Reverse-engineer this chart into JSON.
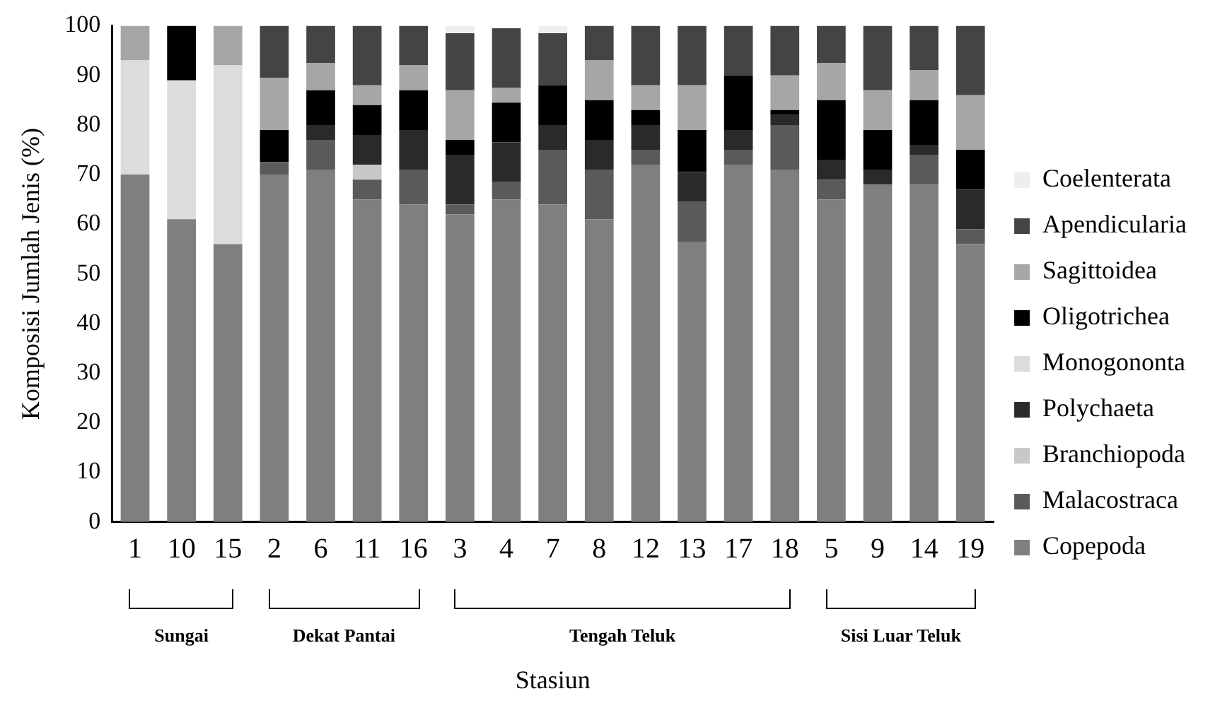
{
  "chart_data": {
    "type": "bar",
    "stacked": true,
    "ylabel": "Komposisi Jumlah Jenis (%)",
    "xlabel": "Stasiun",
    "categories": [
      "1",
      "10",
      "15",
      "2",
      "6",
      "11",
      "16",
      "3",
      "4",
      "7",
      "8",
      "12",
      "13",
      "17",
      "18",
      "5",
      "9",
      "14",
      "19"
    ],
    "series": [
      {
        "name": "Copepoda",
        "color": "#7f7f7f",
        "values": [
          70,
          61,
          56,
          70,
          71,
          65,
          64,
          62,
          65,
          64,
          61,
          72,
          56.5,
          72,
          71,
          65,
          68,
          68,
          56
        ]
      },
      {
        "name": "Malacostraca",
        "color": "#5a5a5a",
        "values": [
          0,
          0,
          0,
          2.5,
          6,
          4,
          7,
          2,
          3.5,
          11,
          10,
          3,
          8,
          3,
          9,
          4,
          0,
          6,
          3
        ]
      },
      {
        "name": "Branchiopoda",
        "color": "#c8c8c8",
        "values": [
          0,
          0,
          0,
          0,
          0,
          3,
          0,
          0,
          0,
          0,
          0,
          0,
          0,
          0,
          0,
          0,
          0,
          0,
          0
        ]
      },
      {
        "name": "Polychaeta",
        "color": "#2a2a2a",
        "values": [
          0,
          0,
          0,
          0,
          3,
          6,
          8,
          10,
          8,
          5,
          6,
          5,
          6,
          4,
          2,
          4,
          3,
          2,
          8
        ]
      },
      {
        "name": "Monogononta",
        "color": "#dcdcdc",
        "values": [
          23,
          28,
          36,
          0,
          0,
          0,
          0,
          0,
          0,
          0,
          0,
          0,
          0,
          0,
          0,
          0,
          0,
          0,
          0
        ]
      },
      {
        "name": "Oligotrichea",
        "color": "#000000",
        "values": [
          0,
          11,
          0,
          6.5,
          7,
          6,
          8,
          3,
          8,
          8,
          8,
          3,
          8.5,
          11,
          1,
          12,
          8,
          9,
          8
        ]
      },
      {
        "name": "Sagittoidea",
        "color": "#a6a6a6",
        "values": [
          7,
          0,
          8,
          10.5,
          5.5,
          4,
          5,
          10,
          3,
          0,
          8,
          5,
          9,
          0,
          7,
          7.5,
          8,
          6,
          11
        ]
      },
      {
        "name": "Apendicularia",
        "color": "#444444",
        "values": [
          0,
          0,
          0,
          10.5,
          7.5,
          12,
          8,
          11.5,
          12,
          10.5,
          7,
          12,
          12,
          10,
          10,
          7.5,
          13,
          9,
          14
        ]
      },
      {
        "name": "Coelenterata",
        "color": "#eeeeee",
        "values": [
          0,
          0,
          0,
          0,
          0,
          0,
          0,
          1.5,
          0,
          1.5,
          0,
          0,
          0,
          0,
          0,
          0,
          0,
          0,
          0
        ]
      }
    ],
    "annotations": [
      "Sungai",
      "Dekat Pantai",
      "Tengah Teluk",
      "Sisi Luar Teluk"
    ],
    "ylim": [
      0,
      100
    ],
    "yticks": [
      0,
      10,
      20,
      30,
      40,
      50,
      60,
      70,
      80,
      90,
      100
    ],
    "grid": false,
    "legend": "right"
  }
}
